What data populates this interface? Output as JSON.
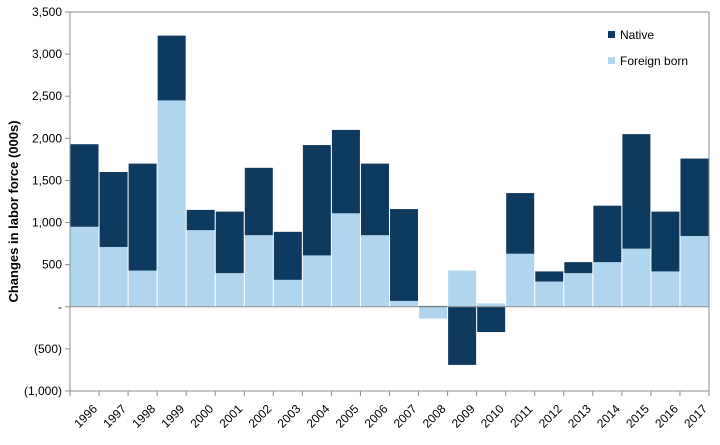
{
  "chart_data": {
    "type": "bar",
    "stacked": true,
    "categories": [
      "1996",
      "1997",
      "1998",
      "1999",
      "2000",
      "2001",
      "2002",
      "2003",
      "2004",
      "2005",
      "2006",
      "2007",
      "2008",
      "2009",
      "2010",
      "2011",
      "2012",
      "2013",
      "2014",
      "2015",
      "2016",
      "2017"
    ],
    "series": [
      {
        "name": "Foreign born",
        "color": "#afd5ef",
        "values": [
          950,
          710,
          430,
          2450,
          910,
          400,
          850,
          320,
          610,
          1110,
          850,
          70,
          -140,
          430,
          40,
          630,
          300,
          400,
          530,
          690,
          420,
          840
        ]
      },
      {
        "name": "Native",
        "color": "#0f3a5f",
        "values": [
          980,
          890,
          1270,
          770,
          240,
          730,
          800,
          570,
          1310,
          990,
          850,
          1090,
          10,
          -690,
          -300,
          720,
          120,
          130,
          670,
          1360,
          710,
          920
        ]
      }
    ],
    "ylabel": "Changes in labor force (000s)",
    "xlabel": "",
    "ylim": [
      -1000,
      3500
    ],
    "yticks": [
      -1000,
      -500,
      0,
      500,
      1000,
      1500,
      2000,
      2500,
      3000,
      3500
    ],
    "ytick_labels": [
      "(1,000)",
      "(500)",
      "-",
      "500",
      "1,000",
      "1,500",
      "2,000",
      "2,500",
      "3,000",
      "3,500"
    ],
    "legend": {
      "placement": "top-right",
      "order": [
        "Native",
        "Foreign born"
      ]
    },
    "grid": false
  }
}
